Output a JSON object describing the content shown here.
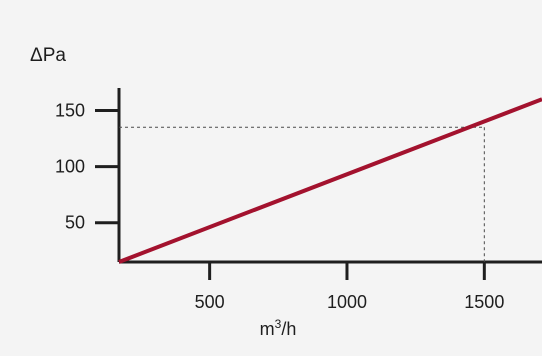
{
  "chart_data": {
    "type": "line",
    "ylabel": "ΔPa",
    "xlabel": {
      "base": "m",
      "sup": "3",
      "tail": "/h"
    },
    "x_ticks": [
      500,
      1000,
      1500
    ],
    "y_ticks": [
      50,
      100,
      150
    ],
    "x_tick_labels": [
      "500",
      "1000",
      "1500"
    ],
    "y_tick_labels": [
      "50",
      "100",
      "150"
    ],
    "xlim": [
      170,
      1710
    ],
    "ylim": [
      15,
      170
    ],
    "grid": false,
    "series": [
      {
        "color": "#a3122e",
        "x": [
          170,
          1710
        ],
        "y": [
          15,
          160
        ]
      }
    ],
    "reference_point": {
      "x": 1500,
      "y": 135
    }
  }
}
